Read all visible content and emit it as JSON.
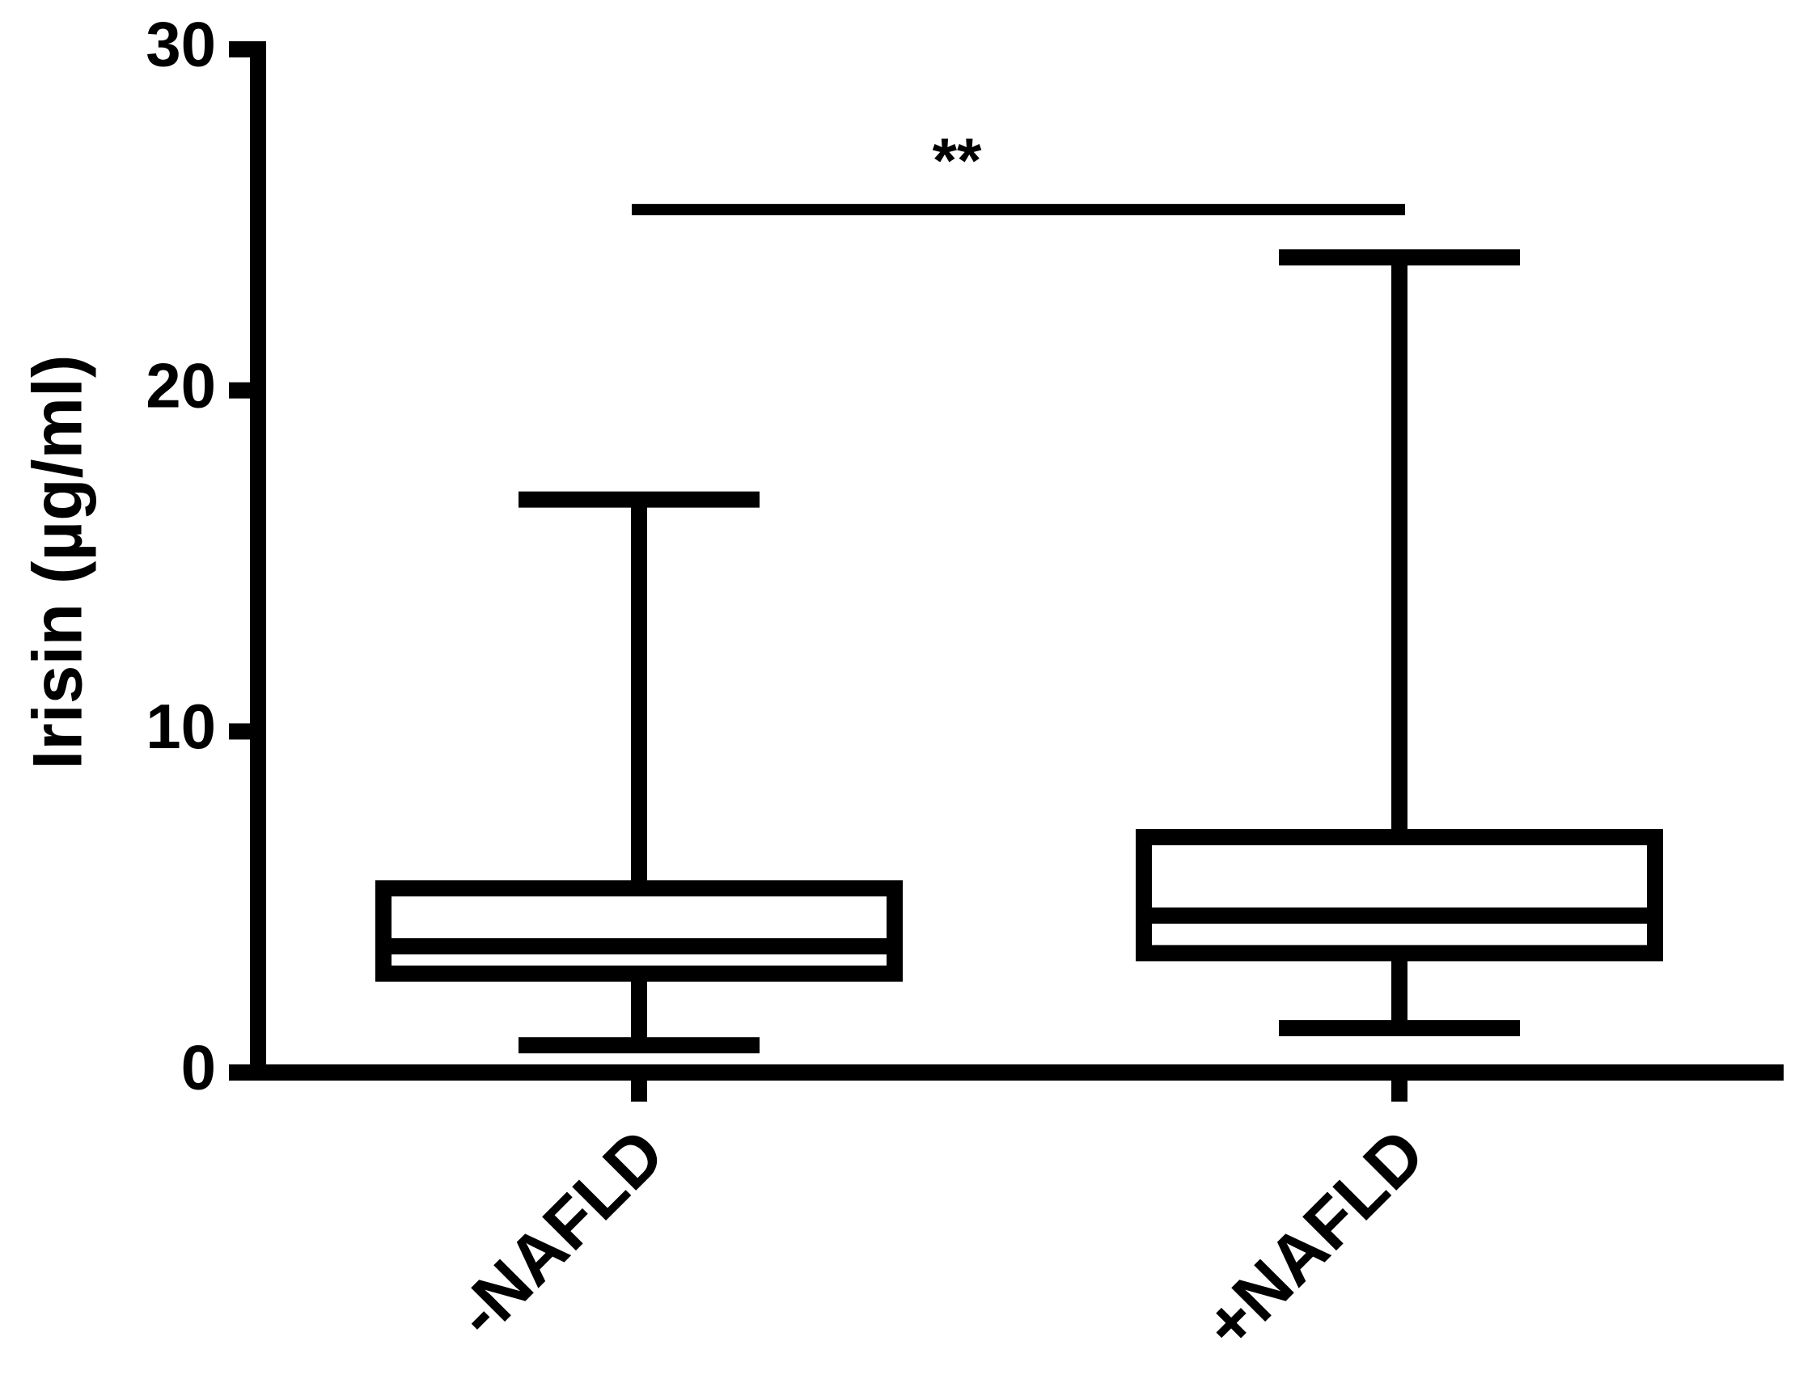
{
  "chart_data": {
    "type": "box",
    "y_label": "Irisin (µg/ml)",
    "categories": [
      "-NAFLD",
      "+NAFLD"
    ],
    "boxes": [
      {
        "min": 0.8,
        "q1": 2.9,
        "median": 3.7,
        "q3": 5.4,
        "max": 16.8
      },
      {
        "min": 1.3,
        "q1": 3.5,
        "median": 4.6,
        "q3": 6.9,
        "max": 23.9
      }
    ],
    "color": "#000000",
    "ylim": [
      0,
      30
    ],
    "yticks": [
      0,
      10,
      20,
      30
    ],
    "annotations": [
      {
        "text": "**",
        "from": 0,
        "to": 1,
        "y": 25.3
      }
    ]
  }
}
